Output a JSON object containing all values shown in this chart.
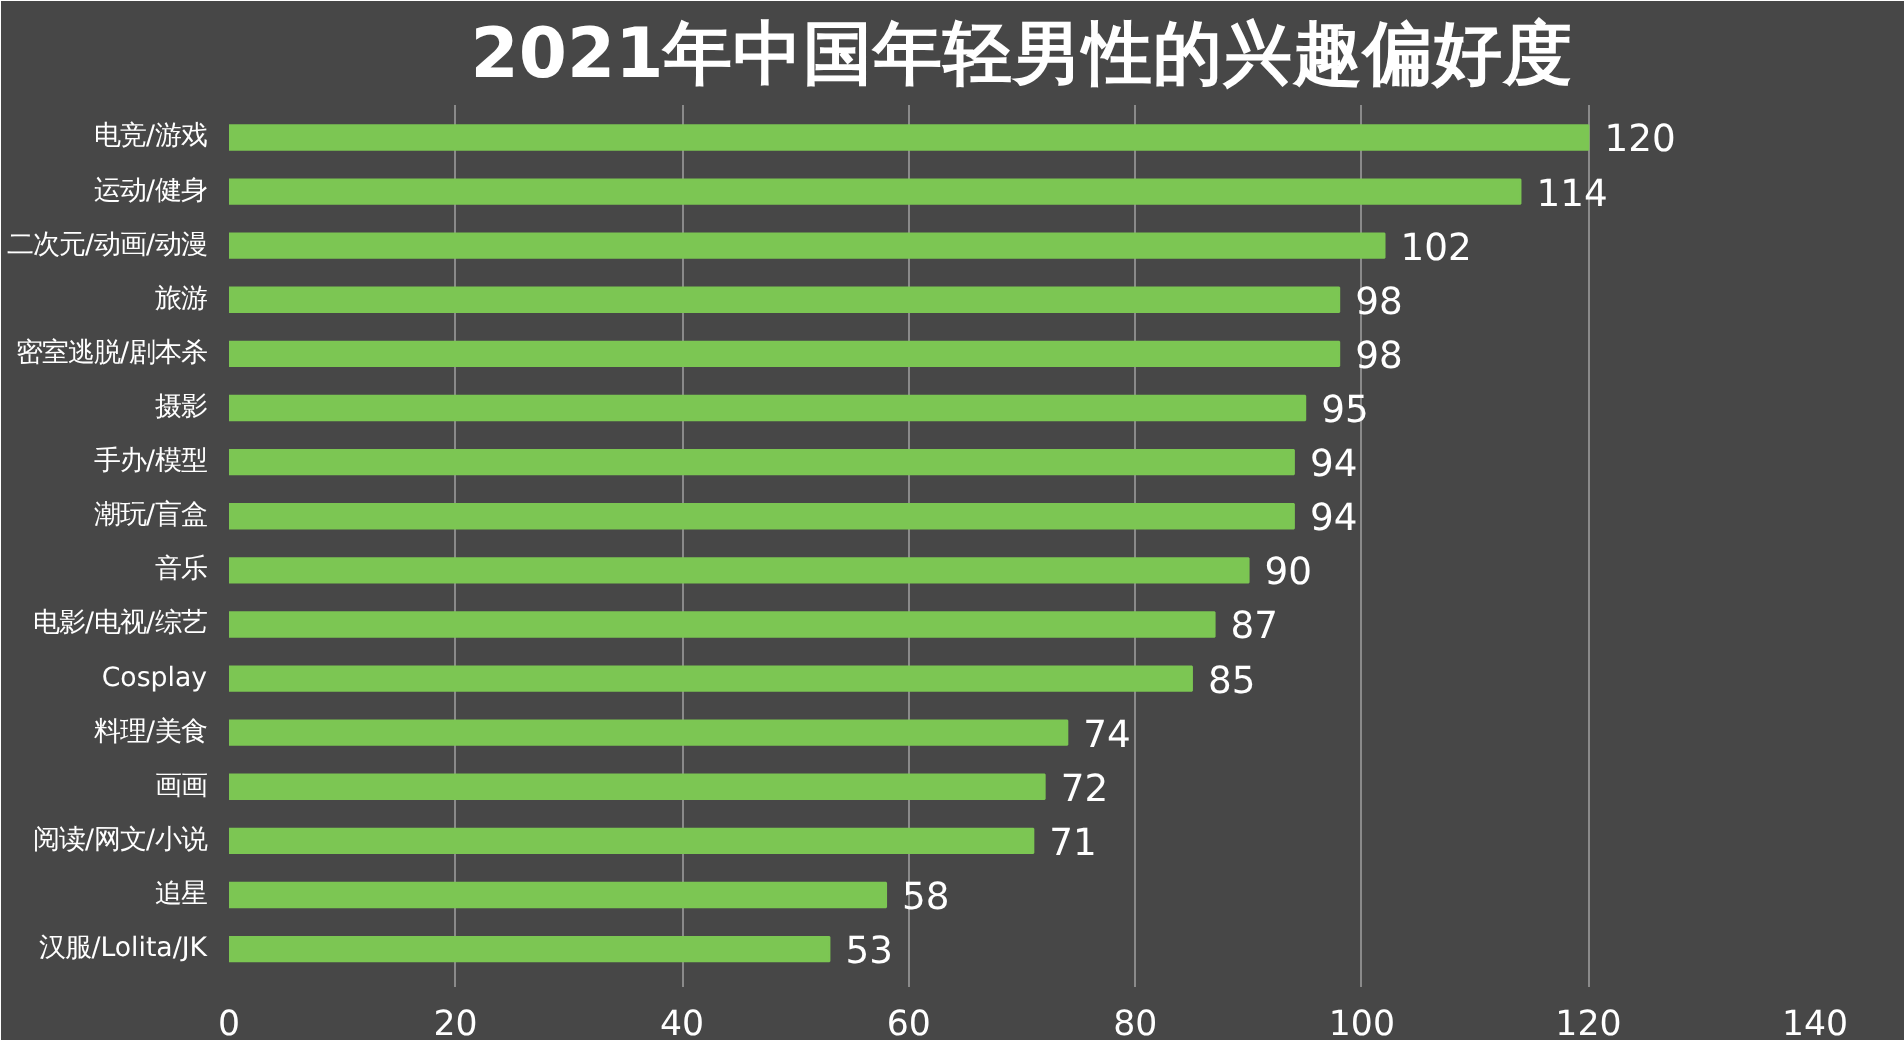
{
  "chart_data": {
    "type": "bar",
    "orientation": "horizontal",
    "title": "2021年中国年轻男性的兴趣偏好度",
    "categories": [
      "电竞/游戏",
      "运动/健身",
      "二次元/动画/动漫",
      "旅游",
      "密室逃脱/剧本杀",
      "摄影",
      "手办/模型",
      "潮玩/盲盒",
      "音乐",
      "电影/电视/综艺",
      "Cosplay",
      "料理/美食",
      "画画",
      "阅读/网文/小说",
      "追星",
      "汉服/Lolita/JK"
    ],
    "values": [
      120,
      114,
      102,
      98,
      98,
      95,
      94,
      94,
      90,
      87,
      85,
      74,
      72,
      71,
      58,
      53
    ],
    "color": "#7cc653",
    "xlim": [
      0,
      140
    ],
    "xticks": [
      0,
      20,
      40,
      60,
      80,
      100,
      120,
      140
    ],
    "grid": "x",
    "data_labels": true
  }
}
